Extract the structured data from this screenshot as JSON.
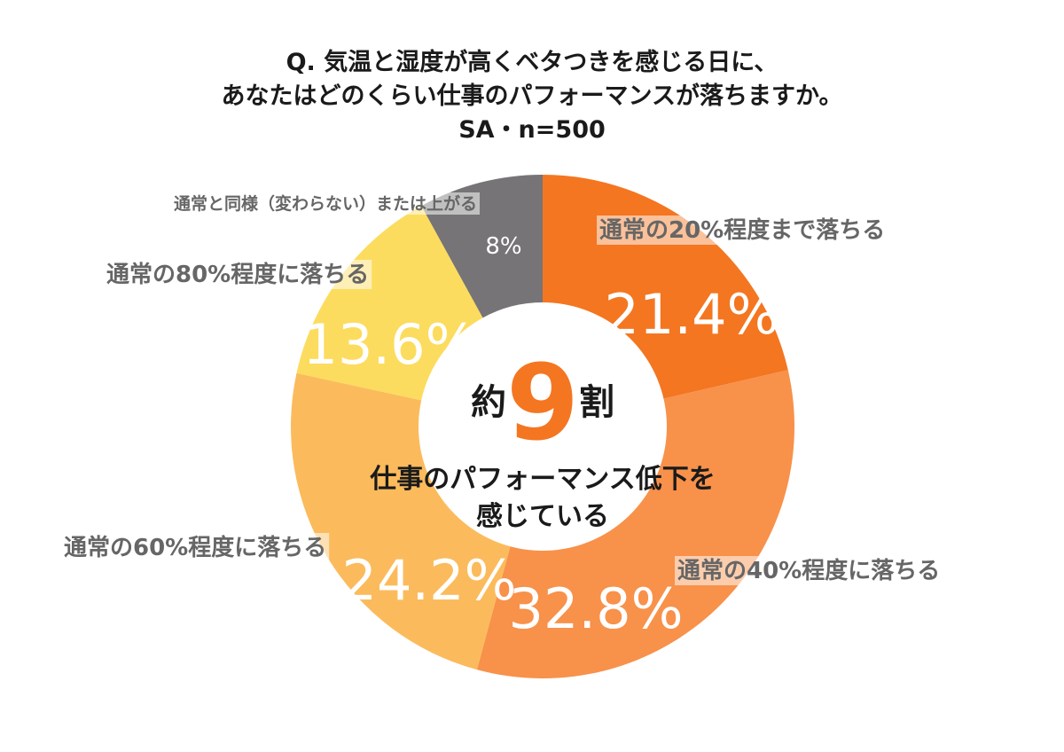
{
  "title": {
    "line1": "Q. 気温と湿度が高くベタつきを感じる日に、",
    "line2": "あなたはどのくらい仕事のパフォーマンスが落ちますか。",
    "line3": "SA・n=500"
  },
  "center": {
    "prefix": "約",
    "number": "9",
    "suffix": "割",
    "line1": "仕事のパフォーマンス低下を",
    "line2": "感じている"
  },
  "chart_data": {
    "type": "pie",
    "donut": true,
    "categories": [
      "通常の20%程度まで落ちる",
      "通常の40%程度に落ちる",
      "通常の60%程度に落ちる",
      "通常の80%程度に落ちる",
      "通常と同様（変わらない）または上がる"
    ],
    "values": [
      21.4,
      32.8,
      24.2,
      13.6,
      8
    ],
    "value_labels": [
      "21.4%",
      "32.8%",
      "24.2%",
      "13.6%",
      "8%"
    ],
    "colors": [
      "#f47621",
      "#f8914a",
      "#fbbb5c",
      "#fcdc5e",
      "#767476"
    ]
  }
}
